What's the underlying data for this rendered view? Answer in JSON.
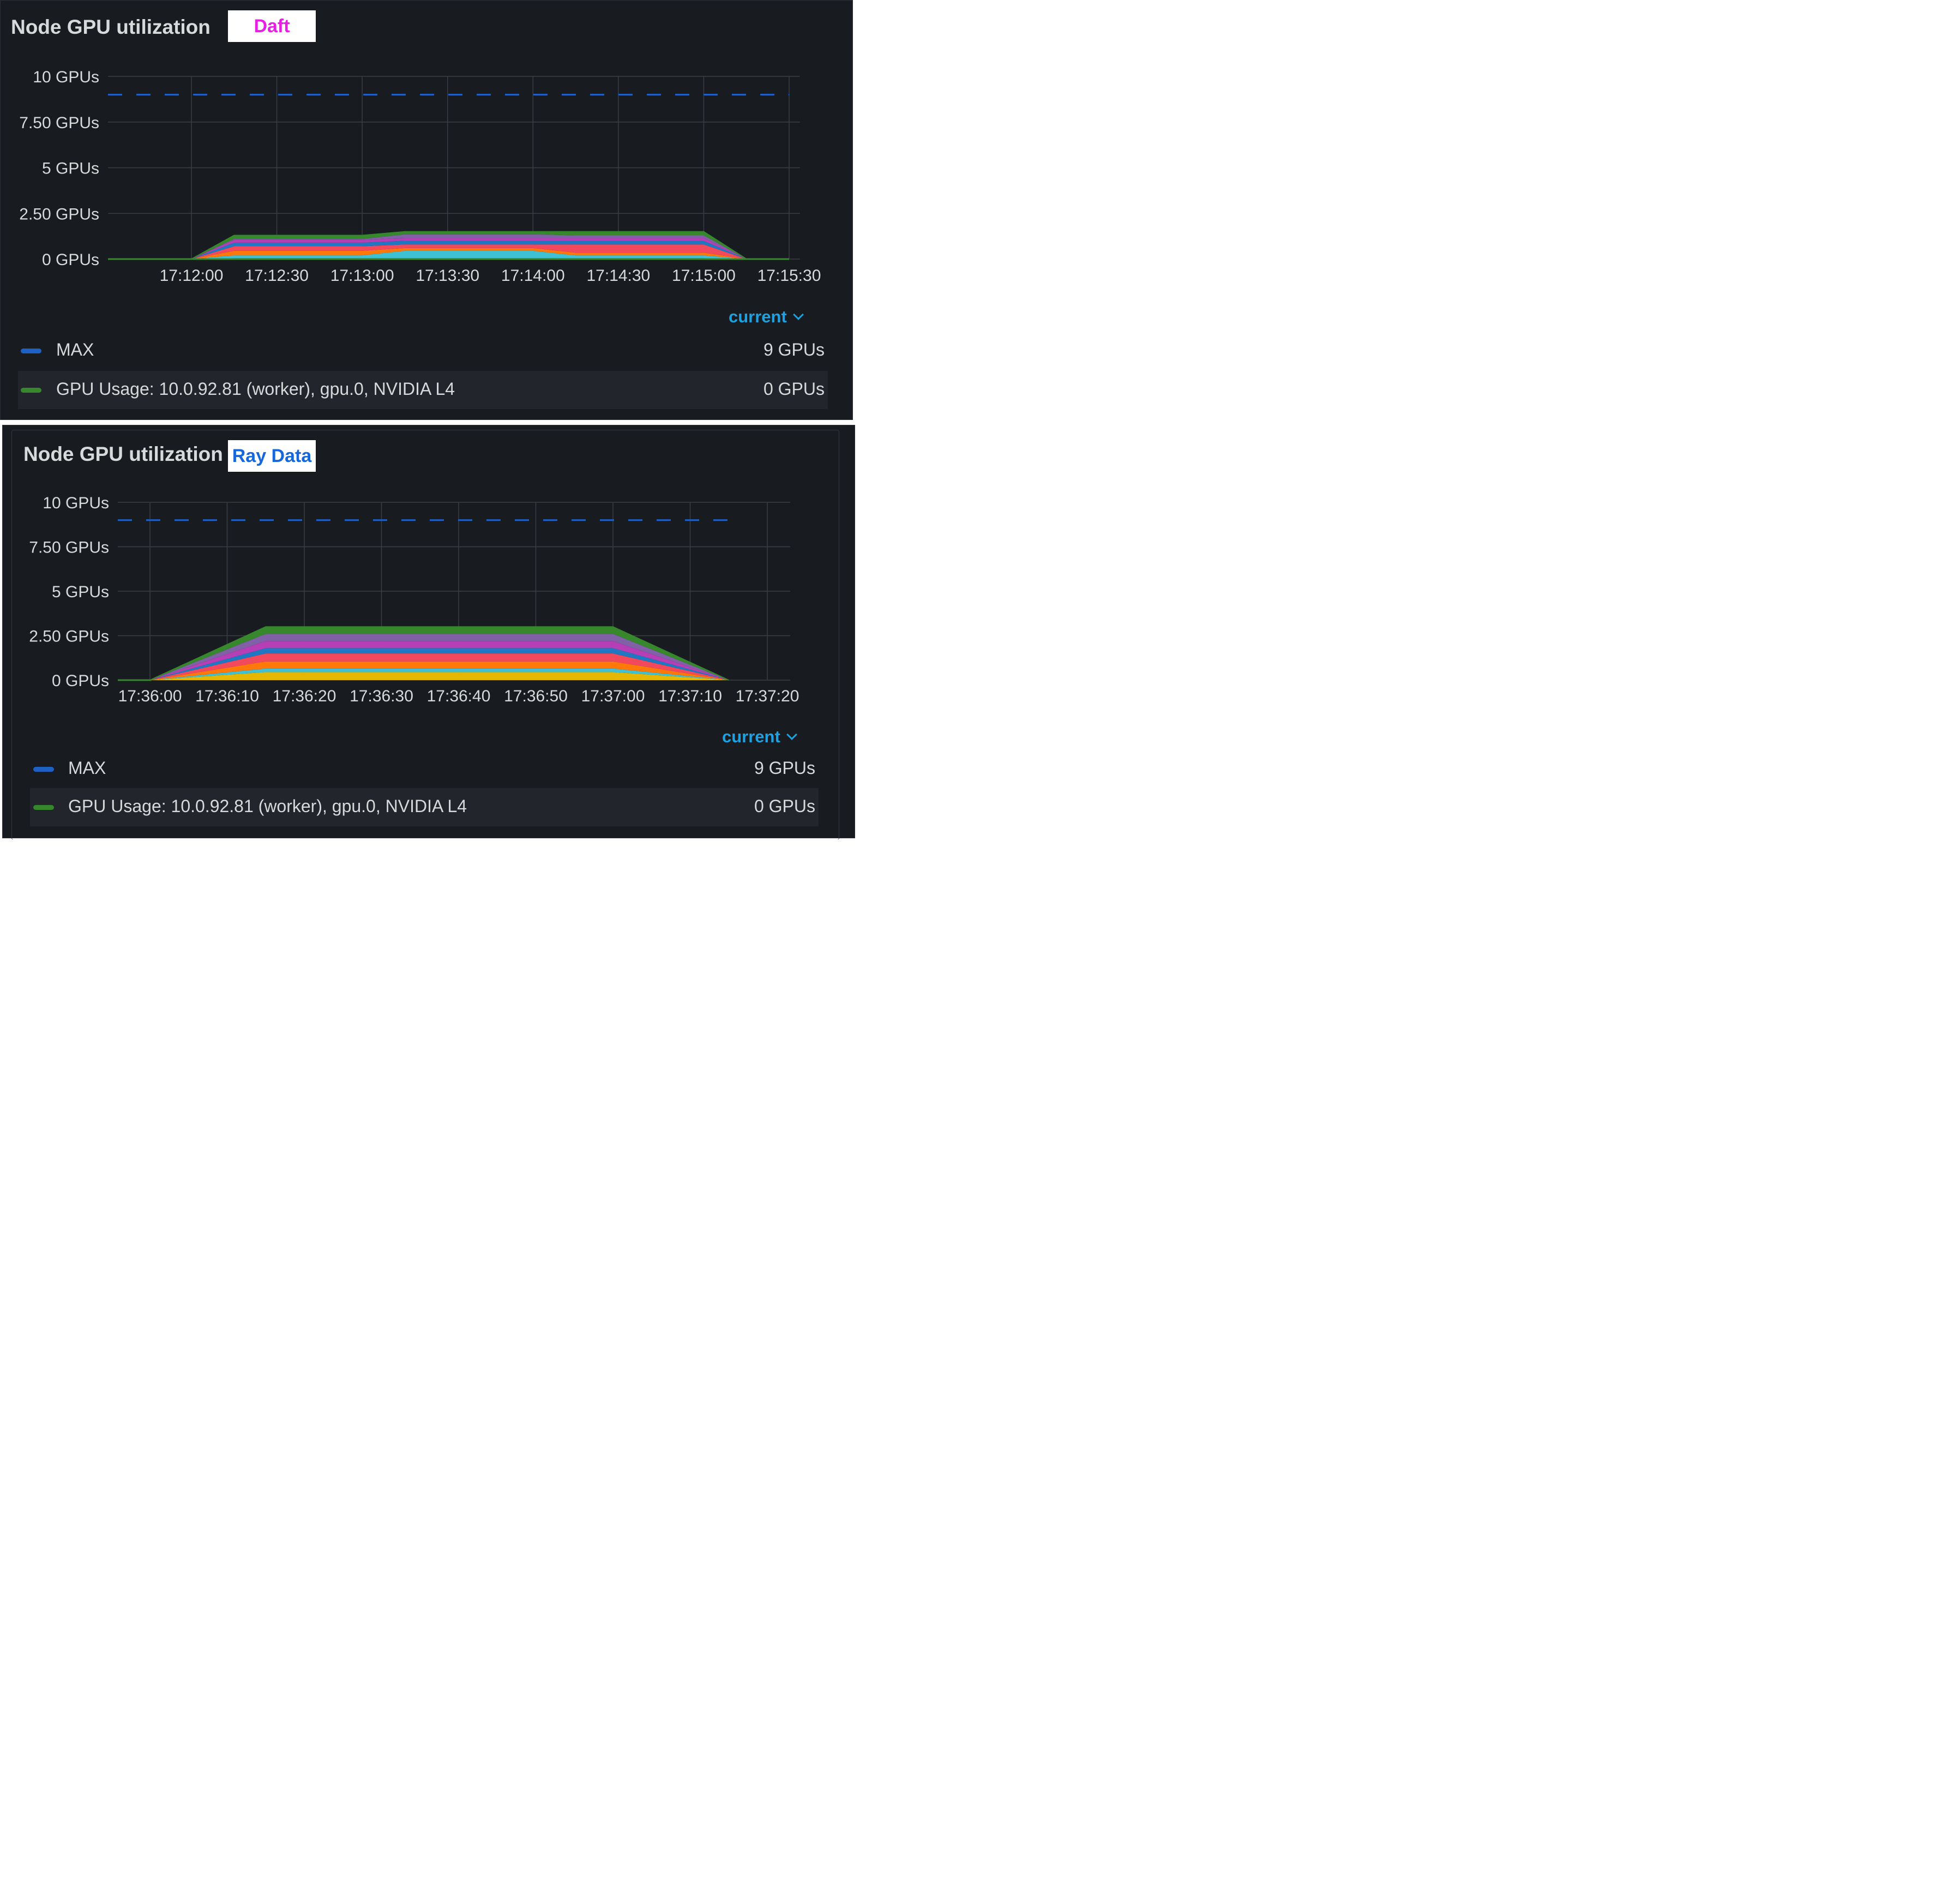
{
  "colors": {
    "max": "#1f60c4",
    "gpu_usage": "#37872d",
    "stack": [
      "#e5b700",
      "#3fc1d3",
      "#ff780a",
      "#f2495c",
      "#1f78c1",
      "#b73fb5",
      "#8061a8",
      "#37872d"
    ],
    "accent": "#1da1e0",
    "daft_tag": "#e61fe2",
    "ray_tag": "#1666dc"
  },
  "panels": [
    {
      "title": "Node GPU utilization",
      "tag": "Daft",
      "legend_mode": "current",
      "legend": [
        {
          "label": "MAX",
          "value": "9 GPUs"
        },
        {
          "label": "GPU Usage: 10.0.92.81 (worker), gpu.0, NVIDIA L4",
          "value": "0 GPUs"
        }
      ]
    },
    {
      "title": "Node GPU utilization",
      "tag": "Ray Data",
      "legend_mode": "current",
      "legend": [
        {
          "label": "MAX",
          "value": "9 GPUs"
        },
        {
          "label": "GPU Usage: 10.0.92.81 (worker), gpu.0, NVIDIA L4",
          "value": "0 GPUs"
        }
      ]
    }
  ],
  "chart_data": [
    {
      "type": "area",
      "title": "Node GPU utilization",
      "stacked": true,
      "ylim": [
        0,
        10
      ],
      "y_ticks": [
        "0 GPUs",
        "2.50 GPUs",
        "5 GPUs",
        "7.50 GPUs",
        "10 GPUs"
      ],
      "y_tick_values": [
        0,
        2.5,
        5,
        7.5,
        10
      ],
      "x_ticks": [
        "17:12:00",
        "17:12:30",
        "17:13:00",
        "17:13:30",
        "17:14:00",
        "17:14:30",
        "17:15:00",
        "17:15:30"
      ],
      "xlim": [
        "17:11:30",
        "17:15:35"
      ],
      "x": [
        "17:11:30",
        "17:12:00",
        "17:12:15",
        "17:13:00",
        "17:13:15",
        "17:14:00",
        "17:14:15",
        "17:15:00",
        "17:15:15",
        "17:15:30"
      ],
      "max_line": 9,
      "series": [
        {
          "values": [
            0,
            0,
            0.05,
            0.05,
            0.05,
            0.05,
            0.05,
            0.05,
            0,
            0
          ]
        },
        {
          "values": [
            0,
            0,
            0.15,
            0.15,
            0.4,
            0.4,
            0.15,
            0.15,
            0,
            0
          ]
        },
        {
          "values": [
            0,
            0,
            0.25,
            0.25,
            0.15,
            0.15,
            0.15,
            0.15,
            0,
            0
          ]
        },
        {
          "values": [
            0,
            0,
            0.25,
            0.25,
            0.2,
            0.2,
            0.45,
            0.45,
            0,
            0
          ]
        },
        {
          "values": [
            0,
            0,
            0.2,
            0.2,
            0.2,
            0.2,
            0.2,
            0.2,
            0,
            0
          ]
        },
        {
          "values": [
            0,
            0,
            0.15,
            0.15,
            0.15,
            0.15,
            0.15,
            0.15,
            0,
            0
          ]
        },
        {
          "values": [
            0,
            0,
            0.05,
            0.05,
            0.2,
            0.2,
            0.15,
            0.15,
            0,
            0
          ]
        },
        {
          "values": [
            0,
            0,
            0.2,
            0.2,
            0.15,
            0.15,
            0.2,
            0.2,
            0,
            0
          ]
        }
      ]
    },
    {
      "type": "area",
      "title": "Node GPU utilization",
      "stacked": true,
      "ylim": [
        0,
        10
      ],
      "y_ticks": [
        "0 GPUs",
        "2.50 GPUs",
        "5 GPUs",
        "7.50 GPUs",
        "10 GPUs"
      ],
      "y_tick_values": [
        0,
        2.5,
        5,
        7.5,
        10
      ],
      "x_ticks": [
        "17:36:00",
        "17:36:10",
        "17:36:20",
        "17:36:30",
        "17:36:40",
        "17:36:50",
        "17:37:00",
        "17:37:10",
        "17:37:20"
      ],
      "xlim": [
        "17:35:56",
        "17:37:23"
      ],
      "x": [
        "17:35:56",
        "17:36:00",
        "17:36:15",
        "17:37:00",
        "17:37:15"
      ],
      "max_line": 9,
      "series": [
        {
          "values": [
            0,
            0,
            0.45,
            0.45,
            0
          ]
        },
        {
          "values": [
            0,
            0,
            0.2,
            0.2,
            0
          ]
        },
        {
          "values": [
            0,
            0,
            0.4,
            0.4,
            0
          ]
        },
        {
          "values": [
            0,
            0,
            0.45,
            0.45,
            0
          ]
        },
        {
          "values": [
            0,
            0,
            0.3,
            0.3,
            0
          ]
        },
        {
          "values": [
            0,
            0,
            0.4,
            0.4,
            0
          ]
        },
        {
          "values": [
            0,
            0,
            0.4,
            0.4,
            0
          ]
        },
        {
          "values": [
            0,
            0,
            0.4,
            0.4,
            0
          ]
        }
      ]
    }
  ]
}
